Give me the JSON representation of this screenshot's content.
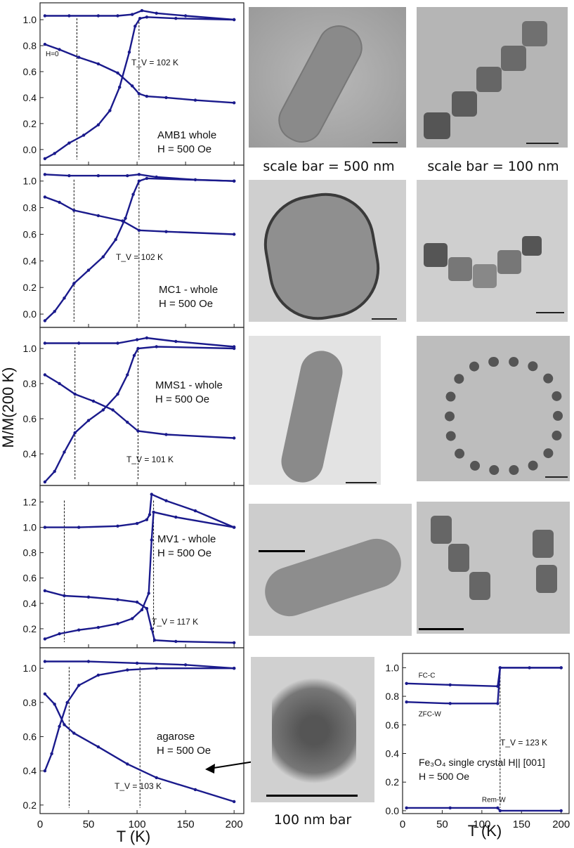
{
  "figure": {
    "y_axis_label": "M/M(200 K)",
    "x_axis_label": "T (K)",
    "inset_x_axis_label": "T (K)",
    "image_captions": {
      "row1_mid": "scale bar = 500 nm",
      "row1_right": "scale bar = 100 nm",
      "row5_mid": "100 nm bar"
    }
  },
  "chart_data": [
    {
      "type": "line",
      "panel": "AMB1",
      "labels": [
        "AMB1 whole",
        "H = 500 Oe"
      ],
      "annotation": "T_V = 102 K",
      "tv": 102,
      "extra_label": "H=0",
      "xlim": [
        0,
        210
      ],
      "ylim": [
        -0.12,
        1.13
      ],
      "yticks": [
        0.0,
        0.2,
        0.4,
        0.6,
        0.8,
        1.0
      ],
      "vlines": [
        38,
        102
      ],
      "series": [
        {
          "values": [
            [
              5,
              1.03
            ],
            [
              30,
              1.03
            ],
            [
              60,
              1.03
            ],
            [
              80,
              1.03
            ],
            [
              95,
              1.04
            ],
            [
              105,
              1.07
            ],
            [
              120,
              1.05
            ],
            [
              150,
              1.03
            ],
            [
              200,
              1.0
            ]
          ]
        },
        {
          "values": [
            [
              5,
              0.81
            ],
            [
              20,
              0.77
            ],
            [
              40,
              0.71
            ],
            [
              60,
              0.66
            ],
            [
              80,
              0.59
            ],
            [
              95,
              0.49
            ],
            [
              102,
              0.43
            ],
            [
              110,
              0.41
            ],
            [
              130,
              0.4
            ],
            [
              160,
              0.38
            ],
            [
              200,
              0.36
            ]
          ]
        },
        {
          "values": [
            [
              5,
              -0.07
            ],
            [
              15,
              -0.03
            ],
            [
              30,
              0.05
            ],
            [
              45,
              0.11
            ],
            [
              60,
              0.19
            ],
            [
              72,
              0.3
            ],
            [
              82,
              0.48
            ],
            [
              92,
              0.75
            ],
            [
              98,
              0.95
            ],
            [
              103,
              1.01
            ],
            [
              110,
              1.02
            ],
            [
              140,
              1.01
            ],
            [
              200,
              1.0
            ]
          ]
        }
      ]
    },
    {
      "type": "line",
      "panel": "MC1",
      "labels": [
        "MC1 - whole",
        "H = 500 Oe"
      ],
      "annotation": "T_V = 102 K",
      "tv": 102,
      "xlim": [
        0,
        210
      ],
      "ylim": [
        -0.1,
        1.12
      ],
      "yticks": [
        0.0,
        0.2,
        0.4,
        0.6,
        0.8,
        1.0
      ],
      "vlines": [
        35,
        102
      ],
      "series": [
        {
          "values": [
            [
              5,
              1.05
            ],
            [
              30,
              1.04
            ],
            [
              60,
              1.04
            ],
            [
              90,
              1.04
            ],
            [
              102,
              1.05
            ],
            [
              120,
              1.03
            ],
            [
              160,
              1.01
            ],
            [
              200,
              1.0
            ]
          ]
        },
        {
          "values": [
            [
              5,
              0.88
            ],
            [
              20,
              0.84
            ],
            [
              35,
              0.78
            ],
            [
              60,
              0.74
            ],
            [
              85,
              0.7
            ],
            [
              102,
              0.63
            ],
            [
              130,
              0.62
            ],
            [
              200,
              0.6
            ]
          ]
        },
        {
          "values": [
            [
              5,
              -0.05
            ],
            [
              15,
              0.02
            ],
            [
              25,
              0.12
            ],
            [
              35,
              0.23
            ],
            [
              50,
              0.33
            ],
            [
              65,
              0.43
            ],
            [
              78,
              0.56
            ],
            [
              88,
              0.72
            ],
            [
              96,
              0.9
            ],
            [
              102,
              1.0
            ],
            [
              110,
              1.02
            ],
            [
              200,
              1.0
            ]
          ]
        }
      ]
    },
    {
      "type": "line",
      "panel": "MMS1",
      "labels": [
        "MMS1 - whole",
        "H = 500 Oe"
      ],
      "annotation": "T_V = 101 K",
      "tv": 101,
      "xlim": [
        0,
        210
      ],
      "ylim": [
        0.22,
        1.12
      ],
      "yticks": [
        0.4,
        0.6,
        0.8,
        1.0
      ],
      "vlines": [
        36,
        101
      ],
      "series": [
        {
          "values": [
            [
              5,
              1.03
            ],
            [
              40,
              1.03
            ],
            [
              80,
              1.03
            ],
            [
              100,
              1.05
            ],
            [
              110,
              1.06
            ],
            [
              140,
              1.04
            ],
            [
              200,
              1.01
            ]
          ]
        },
        {
          "values": [
            [
              5,
              0.85
            ],
            [
              20,
              0.8
            ],
            [
              36,
              0.74
            ],
            [
              55,
              0.7
            ],
            [
              75,
              0.65
            ],
            [
              90,
              0.58
            ],
            [
              101,
              0.53
            ],
            [
              130,
              0.51
            ],
            [
              200,
              0.49
            ]
          ]
        },
        {
          "values": [
            [
              5,
              0.24
            ],
            [
              15,
              0.3
            ],
            [
              25,
              0.41
            ],
            [
              36,
              0.52
            ],
            [
              50,
              0.59
            ],
            [
              65,
              0.65
            ],
            [
              80,
              0.74
            ],
            [
              90,
              0.85
            ],
            [
              97,
              0.96
            ],
            [
              101,
              1.0
            ],
            [
              120,
              1.01
            ],
            [
              200,
              1.0
            ]
          ]
        }
      ]
    },
    {
      "type": "line",
      "panel": "MV1",
      "labels": [
        "MV1 - whole",
        "H = 500 Oe"
      ],
      "annotation": "T_V = 117 K",
      "tv": 117,
      "xlim": [
        0,
        210
      ],
      "ylim": [
        0.05,
        1.33
      ],
      "yticks": [
        0.2,
        0.4,
        0.6,
        0.8,
        1.0,
        1.2
      ],
      "vlines": [
        25,
        117
      ],
      "series": [
        {
          "values": [
            [
              5,
              1.0
            ],
            [
              40,
              1.0
            ],
            [
              80,
              1.01
            ],
            [
              100,
              1.03
            ],
            [
              110,
              1.06
            ],
            [
              113,
              1.1
            ],
            [
              115,
              1.26
            ],
            [
              130,
              1.21
            ],
            [
              160,
              1.13
            ],
            [
              200,
              1.0
            ]
          ]
        },
        {
          "values": [
            [
              5,
              0.5
            ],
            [
              25,
              0.46
            ],
            [
              50,
              0.45
            ],
            [
              80,
              0.43
            ],
            [
              100,
              0.41
            ],
            [
              110,
              0.36
            ],
            [
              115,
              0.2
            ],
            [
              118,
              0.11
            ],
            [
              140,
              0.1
            ],
            [
              200,
              0.09
            ]
          ]
        },
        {
          "values": [
            [
              5,
              0.12
            ],
            [
              20,
              0.16
            ],
            [
              40,
              0.19
            ],
            [
              60,
              0.21
            ],
            [
              80,
              0.24
            ],
            [
              95,
              0.28
            ],
            [
              105,
              0.35
            ],
            [
              112,
              0.48
            ],
            [
              115,
              0.9
            ],
            [
              117,
              1.12
            ],
            [
              140,
              1.08
            ],
            [
              200,
              1.0
            ]
          ]
        }
      ]
    },
    {
      "type": "line",
      "panel": "agarose",
      "labels": [
        "agarose",
        "H = 500 Oe"
      ],
      "annotation": "T_V = 103 K",
      "tv": 103,
      "xlim": [
        0,
        210
      ],
      "ylim": [
        0.15,
        1.12
      ],
      "yticks": [
        0.2,
        0.4,
        0.6,
        0.8,
        1.0
      ],
      "xticks": [
        0,
        50,
        100,
        150,
        200
      ],
      "vlines": [
        30,
        103
      ],
      "series": [
        {
          "values": [
            [
              5,
              1.04
            ],
            [
              50,
              1.04
            ],
            [
              100,
              1.03
            ],
            [
              150,
              1.02
            ],
            [
              200,
              1.0
            ]
          ]
        },
        {
          "values": [
            [
              5,
              0.85
            ],
            [
              15,
              0.79
            ],
            [
              25,
              0.67
            ],
            [
              35,
              0.62
            ],
            [
              60,
              0.54
            ],
            [
              90,
              0.44
            ],
            [
              120,
              0.36
            ],
            [
              160,
              0.29
            ],
            [
              200,
              0.22
            ]
          ]
        },
        {
          "values": [
            [
              5,
              0.4
            ],
            [
              12,
              0.5
            ],
            [
              20,
              0.66
            ],
            [
              28,
              0.8
            ],
            [
              40,
              0.9
            ],
            [
              60,
              0.96
            ],
            [
              90,
              0.99
            ],
            [
              120,
              1.0
            ],
            [
              200,
              1.0
            ]
          ]
        }
      ]
    },
    {
      "type": "line",
      "panel": "Fe3O4 inset",
      "labels": [
        "Fe₃O₄ single crystal H|| [001]",
        "H = 500 Oe"
      ],
      "annotation": "T_V = 123 K",
      "tv": 123,
      "arrow_labels": [
        "FC-C",
        "ZFC-W",
        "Rem-W"
      ],
      "xlim": [
        0,
        210
      ],
      "ylim": [
        -0.02,
        1.1
      ],
      "yticks": [
        0.0,
        0.2,
        0.4,
        0.6,
        0.8,
        1.0
      ],
      "xticks": [
        0,
        50,
        100,
        150,
        200
      ],
      "vlines": [
        123
      ],
      "series": [
        {
          "values": [
            [
              5,
              0.89
            ],
            [
              60,
              0.88
            ],
            [
              120,
              0.87
            ],
            [
              123,
              1.0
            ],
            [
              160,
              1.0
            ],
            [
              200,
              1.0
            ]
          ]
        },
        {
          "values": [
            [
              5,
              0.76
            ],
            [
              60,
              0.75
            ],
            [
              120,
              0.75
            ],
            [
              123,
              1.0
            ],
            [
              200,
              1.0
            ]
          ]
        },
        {
          "values": [
            [
              5,
              0.02
            ],
            [
              60,
              0.02
            ],
            [
              120,
              0.02
            ],
            [
              123,
              0.0
            ],
            [
              200,
              0.0
            ]
          ]
        }
      ]
    }
  ]
}
